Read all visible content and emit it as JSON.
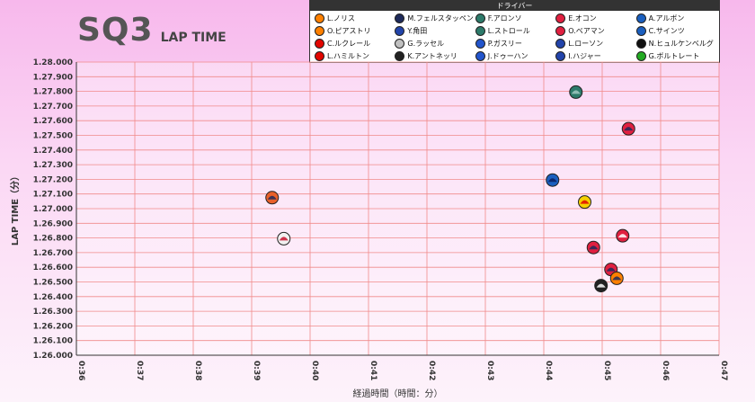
{
  "header": {
    "title": "SQ3",
    "subtitle": "LAP TIME"
  },
  "legend": {
    "title": "ドライバー",
    "items": [
      {
        "label": "L.ノリス",
        "color": "#ff8000",
        "icon": "mclaren-icon"
      },
      {
        "label": "M.フェルスタッペン",
        "color": "#1e2a5a",
        "icon": "redbull-icon"
      },
      {
        "label": "F.アロンソ",
        "color": "#2d7a6a",
        "icon": "astonmartin-icon"
      },
      {
        "label": "E.オコン",
        "color": "#e02040",
        "icon": "haas-icon"
      },
      {
        "label": "A.アルボン",
        "color": "#1a5fbf",
        "icon": "williams-icon"
      },
      {
        "label": "O.ピアストリ",
        "color": "#ff8000",
        "icon": "mclaren-icon"
      },
      {
        "label": "Y.角田",
        "color": "#2244aa",
        "icon": "rb-icon"
      },
      {
        "label": "L.ストロール",
        "color": "#2d7a6a",
        "icon": "astonmartin-icon"
      },
      {
        "label": "O.ベアマン",
        "color": "#e02040",
        "icon": "haas-icon"
      },
      {
        "label": "C.サインツ",
        "color": "#1a5fbf",
        "icon": "williams-icon"
      },
      {
        "label": "C.ルクレール",
        "color": "#e10600",
        "icon": "ferrari-icon"
      },
      {
        "label": "G.ラッセル",
        "color": "#c0c0c0",
        "icon": "mercedes-icon"
      },
      {
        "label": "P.ガスリー",
        "color": "#2255cc",
        "icon": "alpine-icon"
      },
      {
        "label": "L.ローソン",
        "color": "#2244aa",
        "icon": "rb-icon"
      },
      {
        "label": "N.ヒュルケンベルグ",
        "color": "#111111",
        "icon": "sauber-icon"
      },
      {
        "label": "L.ハミルトン",
        "color": "#e10600",
        "icon": "ferrari-icon"
      },
      {
        "label": "K.アントネッリ",
        "color": "#222222",
        "icon": "mercedes-icon"
      },
      {
        "label": "J.ドゥーハン",
        "color": "#2255cc",
        "icon": "alpine-icon"
      },
      {
        "label": "I.ハジャー",
        "color": "#2244aa",
        "icon": "rb-icon"
      },
      {
        "label": "G.ボルトレート",
        "color": "#22aa22",
        "icon": "sauber-icon"
      }
    ]
  },
  "chart_data": {
    "type": "scatter",
    "title": "SQ3",
    "subtitle": "LAP TIME",
    "xlabel": "経過時間（時間：分）",
    "ylabel": "LAP TIME（分）",
    "x_unit": "elapsed minutes",
    "xlim": [
      36,
      47
    ],
    "ylim": [
      1.26,
      1.28
    ],
    "x_ticks": [
      "0:36",
      "0:37",
      "0:38",
      "0:39",
      "0:40",
      "0:41",
      "0:42",
      "0:43",
      "0:44",
      "0:45",
      "0:46",
      "0:47"
    ],
    "y_ticks": [
      "1.26.000",
      "1.26.100",
      "1.26.200",
      "1.26.300",
      "1.26.400",
      "1.26.500",
      "1.26.600",
      "1.26.700",
      "1.26.800",
      "1.26.900",
      "1.27.000",
      "1.27.100",
      "1.27.200",
      "1.27.300",
      "1.27.400",
      "1.27.500",
      "1.27.600",
      "1.27.700",
      "1.27.800",
      "1.27.900",
      "1.28.000"
    ],
    "grid": true,
    "legend_position": "top-right",
    "points": [
      {
        "driver": "Y.角田",
        "x": 39.35,
        "y": 1.27075,
        "color": "#e8602a",
        "fill2": "#1e2a5a"
      },
      {
        "driver": "G.ラッセル",
        "x": 39.55,
        "y": 1.26795,
        "color": "#f0f0f0",
        "fill2": "#c8102e"
      },
      {
        "driver": "F.アロンソ",
        "x": 44.55,
        "y": 1.27795,
        "color": "#2d7a6a",
        "fill2": "#a0c8c0"
      },
      {
        "driver": "E.オコン",
        "x": 45.45,
        "y": 1.27545,
        "color": "#e02040",
        "fill2": "#1e2a5a"
      },
      {
        "driver": "A.アルボン",
        "x": 44.15,
        "y": 1.27195,
        "color": "#1a5fbf",
        "fill2": "#0a2060"
      },
      {
        "driver": "L.ハミルトン",
        "x": 44.7,
        "y": 1.27045,
        "color": "#f5d000",
        "fill2": "#e10600"
      },
      {
        "driver": "O.ベアマン",
        "x": 45.35,
        "y": 1.26815,
        "color": "#e02040",
        "fill2": "#ffffff"
      },
      {
        "driver": "M.フェルスタッペン",
        "x": 44.85,
        "y": 1.26735,
        "color": "#e02040",
        "fill2": "#1e2a5a"
      },
      {
        "driver": "L.ノリス",
        "x": 45.15,
        "y": 1.26585,
        "color": "#e02040",
        "fill2": "#1e2a5a"
      },
      {
        "driver": "O.ピアストリ",
        "x": 45.25,
        "y": 1.26525,
        "color": "#ff8000",
        "fill2": "#1e2a5a"
      },
      {
        "driver": "K.アントネッリ",
        "x": 44.98,
        "y": 1.26475,
        "color": "#222222",
        "fill2": "#ffffff"
      }
    ]
  }
}
